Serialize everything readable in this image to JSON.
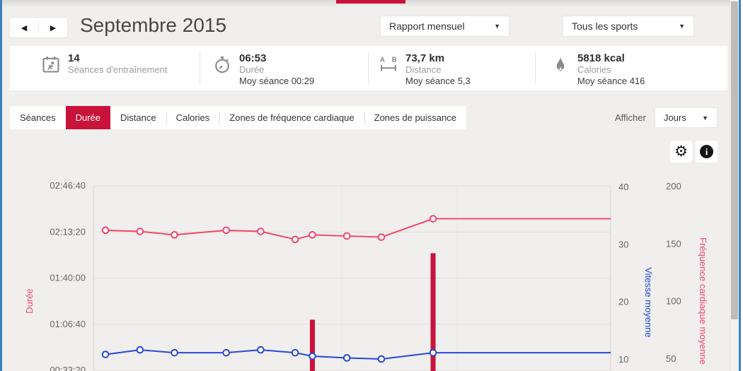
{
  "page": {
    "background": "#f0efee",
    "frame_color": "#3c7fc0",
    "accent_red": "#c9123a"
  },
  "header": {
    "prev": "◀",
    "next": "▶",
    "title": "Septembre 2015",
    "report_dropdown": {
      "value": "Rapport mensuel"
    },
    "sport_dropdown": {
      "value": "Tous les sports"
    }
  },
  "summary": {
    "items": [
      {
        "icon": "calendar-runner-icon",
        "value": "14",
        "label": "Séances d'entraînement",
        "avg": ""
      },
      {
        "icon": "stopwatch-icon",
        "value": "06:53",
        "label": "Durée",
        "avg": "Moy séance 00:29"
      },
      {
        "icon": "distance-ab-icon",
        "value": "73,7 km",
        "label": "Distance",
        "avg": "Moy séance 5,3"
      },
      {
        "icon": "flame-icon",
        "value": "5818 kcal",
        "label": "Calories",
        "avg": "Moy séance 416"
      }
    ]
  },
  "tabs": {
    "items": [
      {
        "label": "Séances"
      },
      {
        "label": "Durée"
      },
      {
        "label": "Distance"
      },
      {
        "label": "Calories"
      },
      {
        "label": "Zones de fréquence cardiaque"
      },
      {
        "label": "Zones de puissance"
      }
    ],
    "active": "Durée"
  },
  "display": {
    "label": "Afficher",
    "value": "Jours"
  },
  "tools": {
    "settings_glyph": "⚙",
    "info_glyph": "i"
  },
  "chart_data": {
    "type": "combo",
    "x": {
      "unit": "jour de septembre 2015",
      "range": [
        1,
        30
      ],
      "tick_labels_visible": false
    },
    "axes": {
      "duration": {
        "side": "left",
        "title": "Durée",
        "title_color": "#f4476b",
        "tick_labels": [
          "02:46:40",
          "02:13:20",
          "01:40:00",
          "01:06:40",
          "00:33:20"
        ],
        "tick_seconds": [
          10000,
          8000,
          6000,
          4000,
          2000
        ],
        "tick_text_color": "#666666"
      },
      "speed": {
        "side": "right",
        "title": "Vitesse moyenne",
        "title_color": "#2747d8",
        "ticks": [
          40,
          30,
          20,
          10
        ],
        "tick_text_color": "#666666"
      },
      "heart_rate": {
        "side": "right",
        "title": "Fréquence cardiaque moyenne",
        "title_color": "#f4476b",
        "ticks": [
          200,
          150,
          100,
          50
        ],
        "tick_text_color": "#666666"
      }
    },
    "bar_series": {
      "name": "Durée",
      "axis": "duration",
      "color": "#c9123a",
      "points": [
        {
          "day": 13,
          "seconds": 4200,
          "label": "01:10"
        },
        {
          "day": 20,
          "seconds": 7080,
          "label": "01:58"
        }
      ]
    },
    "line_series": [
      {
        "name": "Fréquence cardiaque moyenne",
        "axis": "heart_rate",
        "color": "#f4476b",
        "days": [
          1,
          3,
          5,
          8,
          10,
          12,
          13,
          15,
          17,
          20,
          30
        ],
        "values": [
          162,
          161,
          158,
          162,
          161,
          154,
          158,
          157,
          156,
          172,
          172
        ],
        "extend_to_edge": true,
        "marker_on_last": false
      },
      {
        "name": "Vitesse moyenne",
        "axis": "speed",
        "color": "#2747d8",
        "days": [
          1,
          3,
          5,
          8,
          10,
          12,
          13,
          15,
          17,
          20,
          30
        ],
        "values": [
          10.9,
          11.7,
          11.2,
          11.2,
          11.7,
          11.2,
          10.6,
          10.3,
          10.1,
          11.2,
          11.2
        ],
        "extend_to_edge": true,
        "marker_on_last": false
      }
    ],
    "grid": {
      "horizontal": true,
      "vertical_day_separators": [
        14.7,
        21.4
      ],
      "color": "#dededc"
    }
  }
}
